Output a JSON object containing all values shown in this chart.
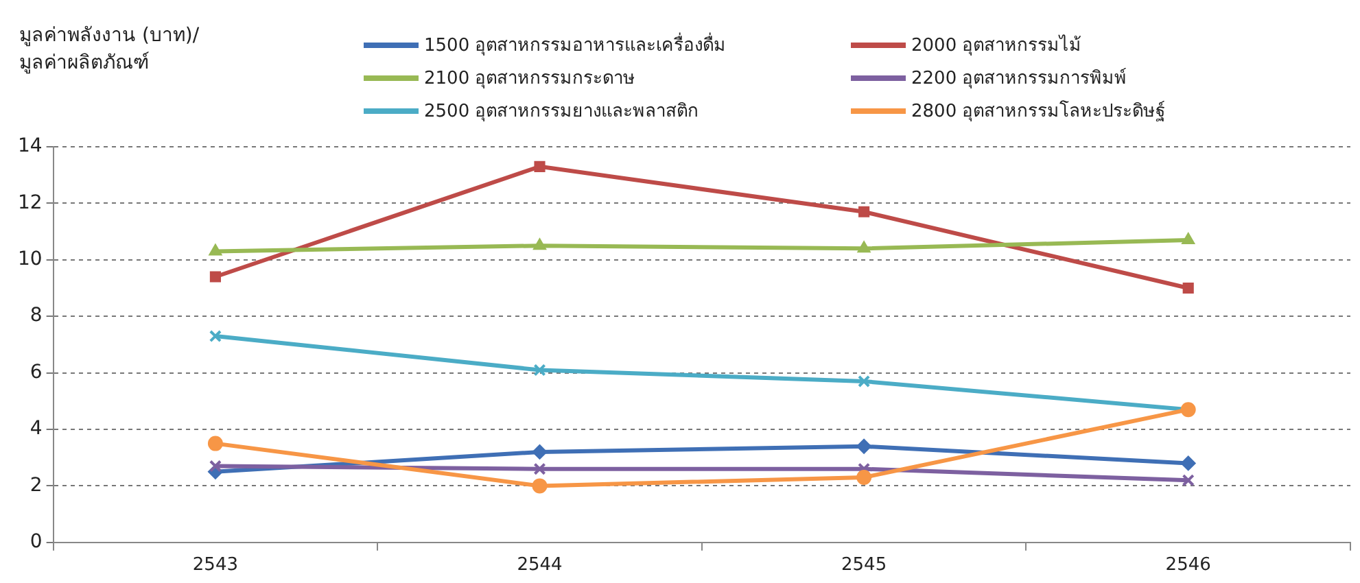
{
  "chart_data": {
    "type": "line",
    "ylabel": "มูลค่าพลังงาน (บาท)/\nมูลค่าผลิตภัณฑ์",
    "categories": [
      "2543",
      "2544",
      "2545",
      "2546"
    ],
    "ylim": [
      0,
      14
    ],
    "yticks": [
      0,
      2,
      4,
      6,
      8,
      10,
      12,
      14
    ],
    "grid": "y",
    "legend": "top",
    "line_style": "solid",
    "series": [
      {
        "name": "1500 อุตสาหกรรมอาหารและเครื่องดื่ม",
        "color": "#3f6fb5",
        "marker": "diamond",
        "values": [
          2.5,
          3.2,
          3.4,
          2.8
        ]
      },
      {
        "name": "2000 อุตสาหกรรมไม้",
        "color": "#be4b48",
        "marker": "square",
        "values": [
          9.4,
          13.3,
          11.7,
          9.0
        ]
      },
      {
        "name": "2100 อุตสาหกรรมกระดาษ",
        "color": "#98b954",
        "marker": "triangle",
        "values": [
          10.3,
          10.5,
          10.4,
          10.7
        ]
      },
      {
        "name": "2200 อุตสาหกรรมการพิมพ์",
        "color": "#7d60a0",
        "marker": "cross",
        "values": [
          2.7,
          2.6,
          2.6,
          2.2
        ]
      },
      {
        "name": "2500 อุตสาหกรรมยางและพลาสติก",
        "color": "#4bacc6",
        "marker": "cross",
        "values": [
          7.3,
          6.1,
          5.7,
          4.7
        ]
      },
      {
        "name": "2800 อุตสาหกรรมโลหะประดิษฐ์",
        "color": "#f79646",
        "marker": "circle",
        "values": [
          3.5,
          2.0,
          2.3,
          4.7
        ]
      }
    ]
  }
}
